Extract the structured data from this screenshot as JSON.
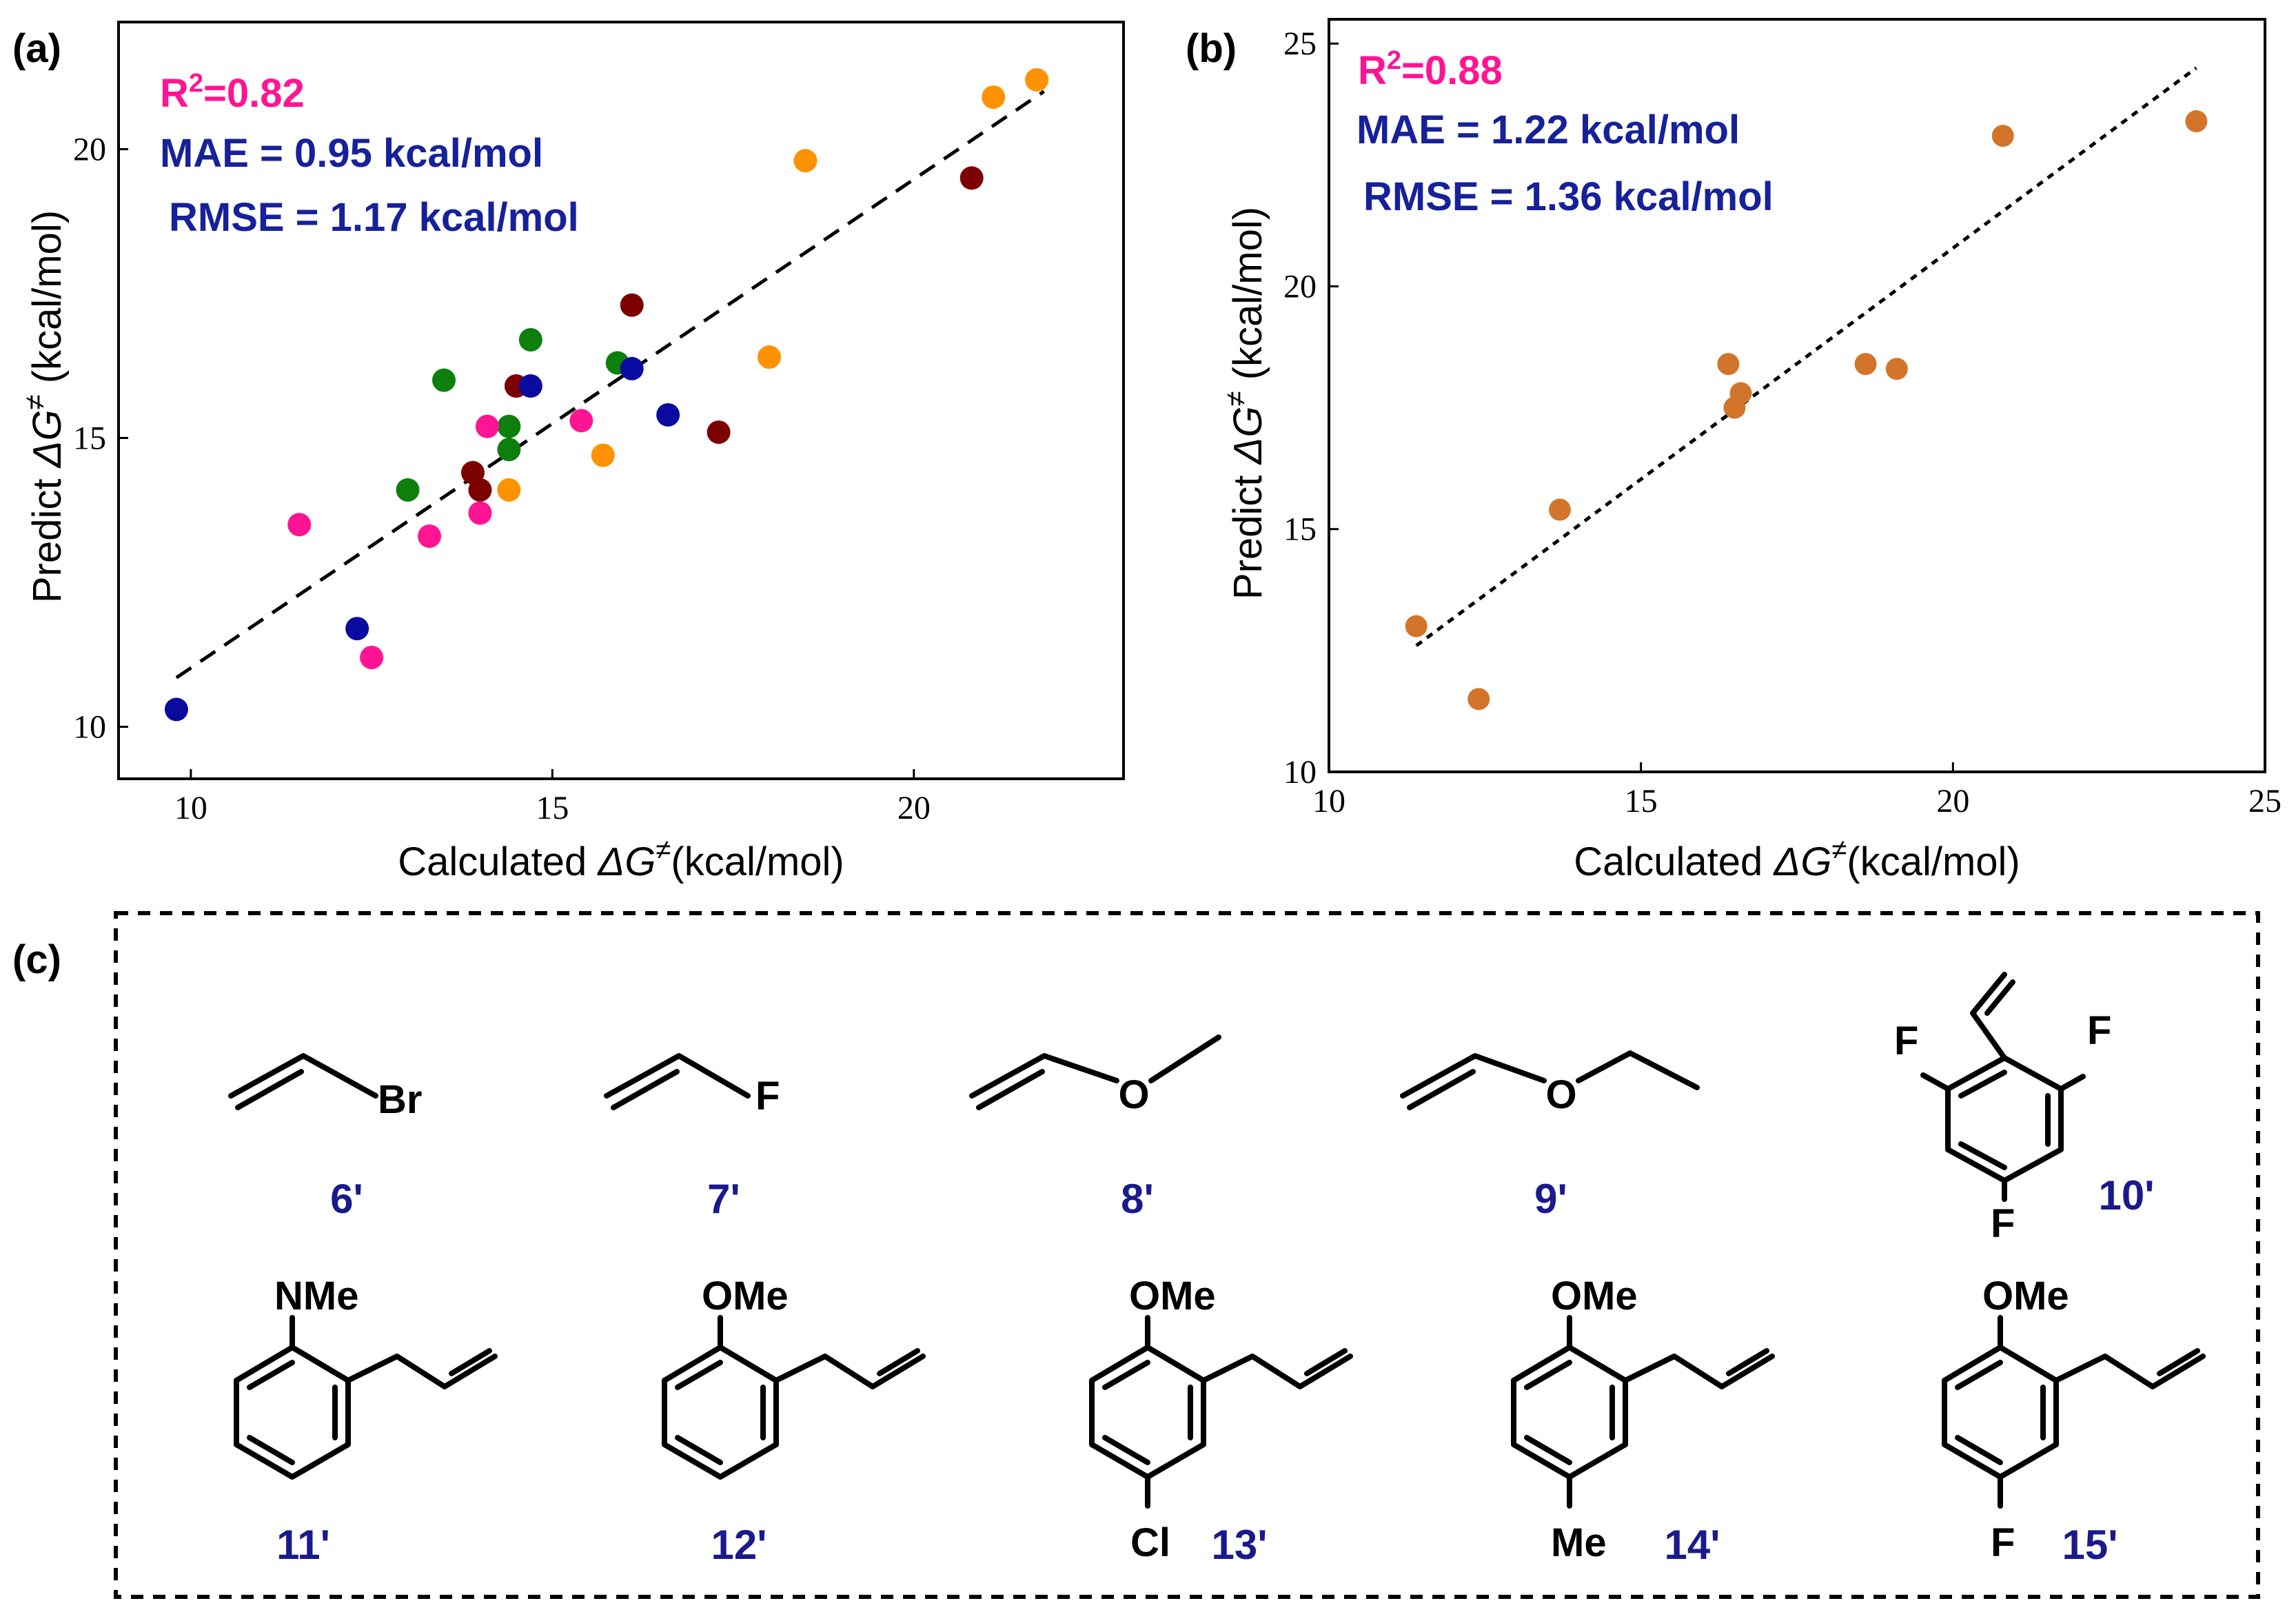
{
  "panels": {
    "a_label": "(a)",
    "b_label": "(b)",
    "c_label": "(c)"
  },
  "chart_data": [
    {
      "id": "a",
      "type": "scatter",
      "xlabel_prefix": "Calculated ",
      "xlabel_symbol": "ΔG",
      "xlabel_sup": "≠",
      "xlabel_suffix": "(kcal/mol)",
      "ylabel_prefix": "Predict ",
      "ylabel_symbol": "ΔG",
      "ylabel_sup": "≠",
      "ylabel_suffix": " (kcal/mol)",
      "xlim": [
        9,
        22.9
      ],
      "ylim": [
        9.1,
        22.2
      ],
      "xticks": [
        10,
        15,
        20
      ],
      "yticks": [
        10,
        15,
        20
      ],
      "stats": {
        "r2_prefix": "R",
        "r2_sup": "2",
        "r2_value": "=0.82",
        "mae": "MAE = 0.95 kcal/mol",
        "rmse": "RMSE = 1.17 kcal/mol"
      },
      "colors": {
        "r2": "#ff1493",
        "stats": "#16219a",
        "fit": "#000000"
      },
      "fit_line": {
        "x": [
          9.8,
          21.8
        ],
        "y": [
          10.85,
          21.0
        ]
      },
      "series": [
        {
          "name": "orange",
          "color": "#ff9200",
          "points": [
            [
              21.7,
              21.2
            ],
            [
              21.1,
              20.9
            ],
            [
              18.5,
              19.8
            ],
            [
              18.0,
              16.4
            ],
            [
              15.7,
              14.7
            ],
            [
              14.4,
              14.1
            ]
          ]
        },
        {
          "name": "dark-red",
          "color": "#7d0000",
          "points": [
            [
              20.8,
              19.5
            ],
            [
              16.1,
              17.3
            ],
            [
              14.5,
              15.9
            ],
            [
              17.3,
              15.1
            ],
            [
              13.9,
              14.4
            ],
            [
              14.0,
              14.1
            ]
          ]
        },
        {
          "name": "green",
          "color": "#0c7f0c",
          "points": [
            [
              14.7,
              16.7
            ],
            [
              15.9,
              16.3
            ],
            [
              13.5,
              16.0
            ],
            [
              14.4,
              15.2
            ],
            [
              14.4,
              14.8
            ],
            [
              13.0,
              14.1
            ]
          ]
        },
        {
          "name": "blue",
          "color": "#0a0aa0",
          "points": [
            [
              16.1,
              16.2
            ],
            [
              14.7,
              15.9
            ],
            [
              16.6,
              15.4
            ],
            [
              12.3,
              11.7
            ],
            [
              9.8,
              10.3
            ]
          ]
        },
        {
          "name": "pink",
          "color": "#ff1493",
          "points": [
            [
              14.1,
              15.2
            ],
            [
              15.4,
              15.3
            ],
            [
              14.0,
              13.7
            ],
            [
              13.3,
              13.3
            ],
            [
              11.5,
              13.5
            ],
            [
              12.5,
              11.2
            ]
          ]
        }
      ]
    },
    {
      "id": "b",
      "type": "scatter",
      "xlabel_prefix": "Calculated ",
      "xlabel_symbol": "ΔG",
      "xlabel_sup": "≠",
      "xlabel_suffix": "(kcal/mol)",
      "ylabel_prefix": "Predict ",
      "ylabel_symbol": "ΔG",
      "ylabel_sup": "≠",
      "ylabel_suffix": " (kcal/mol)",
      "xlim": [
        10,
        25
      ],
      "ylim": [
        10,
        25.5
      ],
      "xticks": [
        10,
        15,
        20,
        25
      ],
      "yticks": [
        10,
        15,
        20,
        25
      ],
      "stats": {
        "r2_prefix": "R",
        "r2_sup": "2",
        "r2_value": "=0.88",
        "mae": "MAE = 1.22 kcal/mol",
        "rmse": "RMSE = 1.36 kcal/mol"
      },
      "colors": {
        "r2": "#ff1493",
        "stats": "#16219a",
        "fit": "#000000"
      },
      "fit_line": {
        "x": [
          11.4,
          23.9
        ],
        "y": [
          12.6,
          24.5
        ]
      },
      "series": [
        {
          "name": "all",
          "color": "#d2752a",
          "points": [
            [
              23.9,
              23.4
            ],
            [
              20.8,
              23.1
            ],
            [
              16.4,
              18.4
            ],
            [
              18.6,
              18.4
            ],
            [
              19.1,
              18.3
            ],
            [
              16.6,
              17.8
            ],
            [
              16.5,
              17.5
            ],
            [
              13.7,
              15.4
            ],
            [
              11.4,
              13.0
            ],
            [
              12.4,
              11.5
            ]
          ]
        }
      ]
    }
  ],
  "compounds": {
    "c6": "6'",
    "c7": "7'",
    "c8": "8'",
    "c9": "9'",
    "c10": "10'",
    "c11": "11'",
    "c12": "12'",
    "c13": "13'",
    "c14": "14'",
    "c15": "15'"
  },
  "atoms": {
    "br": "Br",
    "f": "F",
    "o": "O",
    "nme": "NMe",
    "ome": "OMe",
    "cl": "Cl",
    "me": "Me"
  }
}
